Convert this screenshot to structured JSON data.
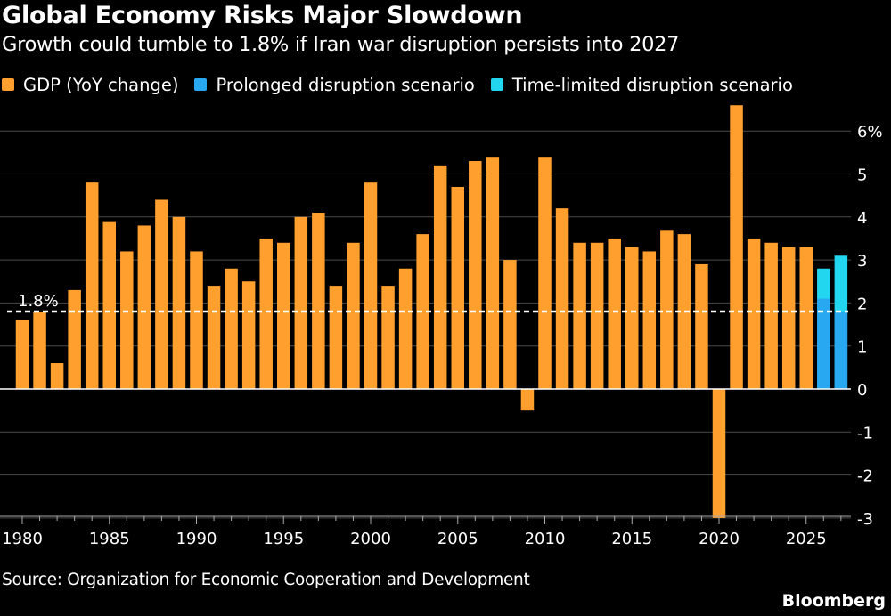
{
  "header": {
    "title": "Global Economy Risks Major Slowdown",
    "subtitle": "Growth could tumble to 1.8% if Iran war disruption persists into 2027"
  },
  "legend": [
    {
      "label": "GDP (YoY change)",
      "color": "#ff9f2e"
    },
    {
      "label": "Prolonged disruption scenario",
      "color": "#27a8f0"
    },
    {
      "label": "Time-limited disruption scenario",
      "color": "#22d6f0"
    }
  ],
  "footer": {
    "source": "Source: Organization for Economic Cooperation and Development",
    "brand": "Bloomberg"
  },
  "chart_data": {
    "type": "bar",
    "x": [
      1980,
      1981,
      1982,
      1983,
      1984,
      1985,
      1986,
      1987,
      1988,
      1989,
      1990,
      1991,
      1992,
      1993,
      1994,
      1995,
      1996,
      1997,
      1998,
      1999,
      2000,
      2001,
      2002,
      2003,
      2004,
      2005,
      2006,
      2007,
      2008,
      2009,
      2010,
      2011,
      2012,
      2013,
      2014,
      2015,
      2016,
      2017,
      2018,
      2019,
      2020,
      2021,
      2022,
      2023,
      2024,
      2025,
      2026,
      2027
    ],
    "series": [
      {
        "name": "GDP (YoY change)",
        "color": "#ff9f2e",
        "values": [
          1.6,
          1.8,
          0.6,
          2.3,
          4.8,
          3.9,
          3.2,
          3.8,
          4.4,
          4.0,
          3.2,
          2.4,
          2.8,
          2.5,
          3.5,
          3.4,
          4.0,
          4.1,
          2.4,
          3.4,
          4.8,
          2.4,
          2.8,
          3.6,
          5.2,
          4.7,
          5.3,
          5.4,
          3.0,
          -0.5,
          5.4,
          4.2,
          3.4,
          3.4,
          3.5,
          3.3,
          3.2,
          3.7,
          3.6,
          2.9,
          -3.0,
          6.6,
          3.5,
          3.4,
          3.3,
          3.3,
          null,
          null
        ]
      },
      {
        "name": "Prolonged disruption scenario",
        "color": "#27a8f0",
        "values": [
          null,
          null,
          null,
          null,
          null,
          null,
          null,
          null,
          null,
          null,
          null,
          null,
          null,
          null,
          null,
          null,
          null,
          null,
          null,
          null,
          null,
          null,
          null,
          null,
          null,
          null,
          null,
          null,
          null,
          null,
          null,
          null,
          null,
          null,
          null,
          null,
          null,
          null,
          null,
          null,
          null,
          null,
          null,
          null,
          null,
          null,
          2.1,
          1.8
        ]
      },
      {
        "name": "Time-limited disruption scenario",
        "color": "#22d6f0",
        "values": [
          null,
          null,
          null,
          null,
          null,
          null,
          null,
          null,
          null,
          null,
          null,
          null,
          null,
          null,
          null,
          null,
          null,
          null,
          null,
          null,
          null,
          null,
          null,
          null,
          null,
          null,
          null,
          null,
          null,
          null,
          null,
          null,
          null,
          null,
          null,
          null,
          null,
          null,
          null,
          null,
          null,
          null,
          null,
          null,
          null,
          null,
          2.8,
          3.1
        ]
      }
    ],
    "ylim": [
      -3,
      6.6
    ],
    "yticks": [
      {
        "value": 6,
        "label": "6%"
      },
      {
        "value": 5,
        "label": "5"
      },
      {
        "value": 4,
        "label": "4"
      },
      {
        "value": 3,
        "label": "3"
      },
      {
        "value": 2,
        "label": "2"
      },
      {
        "value": 1,
        "label": "1"
      },
      {
        "value": 0,
        "label": "0"
      },
      {
        "value": -1,
        "label": "-1"
      },
      {
        "value": -2,
        "label": "-2"
      },
      {
        "value": -3,
        "label": "-3"
      }
    ],
    "xticks": [
      1980,
      1985,
      1990,
      1995,
      2000,
      2005,
      2010,
      2015,
      2020,
      2025
    ],
    "reference_line": {
      "value": 1.8,
      "label": "1.8%"
    },
    "grid": true,
    "legend_position": "top-left"
  }
}
